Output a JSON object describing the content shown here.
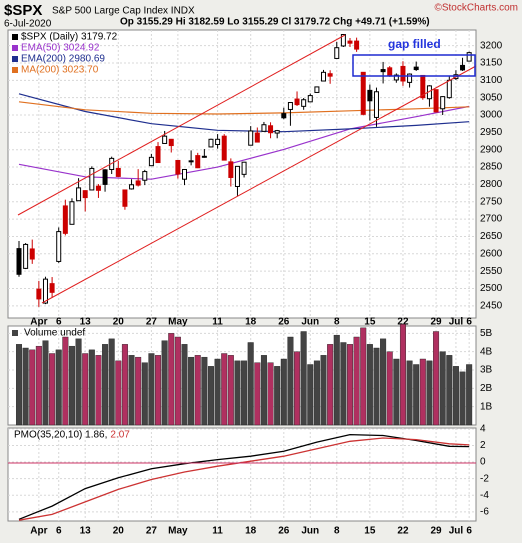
{
  "chart_data": {
    "type": "candlestick",
    "title": "$SPX",
    "subtitle": "S&P 500 Large Cap Index INDX",
    "credit": "©StockCharts.com",
    "date": "6-Jul-2020",
    "stats": "Op 3155.29  Hi 3182.59  Lo 3155.29  Cl 3179.72  Chg +49.71 (+1.59%)",
    "annotation": "gap filled",
    "price_label": "$SPX (Daily) 3179.72",
    "categories": [
      null,
      null,
      null,
      "Apr",
      null,
      null,
      "6",
      null,
      null,
      null,
      "13",
      null,
      null,
      null,
      null,
      "20",
      null,
      null,
      null,
      null,
      "27",
      null,
      null,
      null,
      "May",
      null,
      null,
      null,
      null,
      null,
      "11",
      null,
      null,
      null,
      null,
      "18",
      null,
      null,
      null,
      null,
      "26",
      null,
      null,
      null,
      "Jun",
      null,
      null,
      null,
      "8",
      null,
      null,
      null,
      null,
      "15",
      null,
      null,
      null,
      null,
      "22",
      null,
      null,
      null,
      null,
      "29",
      null,
      null,
      "Jul",
      null,
      "6"
    ],
    "open": [
      2615,
      2558,
      2614,
      2498,
      2458,
      2514,
      2578,
      2738,
      2685,
      2753,
      2782,
      2784,
      2795,
      2842,
      2843,
      2846,
      2784,
      2787,
      2810,
      2812,
      2854,
      2909,
      2918,
      2930,
      2869,
      2815,
      2868,
      2883,
      2879,
      2908,
      2915,
      2939,
      2865,
      2794,
      2829,
      2913,
      2948,
      2953,
      2969,
      2948,
      3004,
      3016,
      3046,
      3025,
      3038,
      3065,
      3098,
      3119,
      3163,
      3199,
      3213,
      3213,
      3123,
      3071,
      2993,
      3131,
      3136,
      3101,
      3140,
      3094,
      3138,
      3114,
      3047,
      3073,
      3018,
      3050,
      3105,
      3143,
      3155.29
    ],
    "high": [
      2637,
      2631,
      2641,
      2522,
      2534,
      2533,
      2676,
      2756,
      2760,
      2818,
      2783,
      2852,
      2801,
      2844,
      2880,
      2868,
      2785,
      2815,
      2844,
      2842,
      2888,
      2922,
      2954,
      2931,
      2869,
      2844,
      2898,
      2891,
      2902,
      2932,
      2945,
      2945,
      2875,
      2852,
      2865,
      2968,
      2964,
      2980,
      2979,
      2957,
      3021,
      3036,
      3068,
      3049,
      3062,
      3082,
      3130,
      3129,
      3211,
      3233,
      3222,
      3223,
      3123,
      3088,
      3079,
      3153,
      3141,
      3120,
      3155,
      3120,
      3154,
      3115,
      3086,
      3073,
      3054,
      3112,
      3129,
      3165,
      3182.59
    ],
    "low": [
      2534,
      2556,
      2571,
      2447,
      2455,
      2473,
      2574,
      2653,
      2685,
      2753,
      2722,
      2784,
      2761,
      2779,
      2830,
      2821,
      2727,
      2785,
      2794,
      2798,
      2853,
      2862,
      2918,
      2892,
      2817,
      2798,
      2855,
      2847,
      2877,
      2908,
      2903,
      2869,
      2794,
      2767,
      2820,
      2913,
      2922,
      2953,
      2933,
      2933,
      2988,
      2969,
      3026,
      3015,
      3038,
      3064,
      3098,
      3090,
      3163,
      3196,
      3196,
      3182,
      2999,
      2984,
      2966,
      3091,
      3110,
      3093,
      3084,
      3079,
      3127,
      3044,
      3024,
      3007,
      3000,
      3047,
      3101,
      3127,
      3155.29
    ],
    "close": [
      2541,
      2627,
      2585,
      2470,
      2527,
      2489,
      2664,
      2659,
      2750,
      2790,
      2762,
      2846,
      2783,
      2800,
      2875,
      2823,
      2737,
      2799,
      2798,
      2837,
      2878,
      2863,
      2939,
      2912,
      2830,
      2843,
      2868,
      2848,
      2881,
      2930,
      2930,
      2870,
      2820,
      2852,
      2864,
      2954,
      2922,
      2972,
      2949,
      2955,
      2992,
      3036,
      3030,
      3044,
      3056,
      3081,
      3123,
      3112,
      3194,
      3232,
      3207,
      3190,
      3002,
      3041,
      3067,
      3125,
      3113,
      3115,
      3098,
      3118,
      3131,
      3050,
      3084,
      3009,
      3053,
      3100,
      3116,
      3130,
      3179.72
    ],
    "ylim": [
      2415,
      3245
    ],
    "yticks": [
      2450,
      2500,
      2550,
      2600,
      2650,
      2700,
      2750,
      2800,
      2850,
      2900,
      2950,
      3000,
      3050,
      3100,
      3150,
      3200
    ],
    "indicators": [
      {
        "name": "EMA(50) 3024.92",
        "color": "#9933cc",
        "idx": [
          0,
          10,
          20,
          30,
          40,
          50,
          60,
          68
        ],
        "values": [
          2858,
          2822,
          2815,
          2850,
          2901,
          2960,
          2995,
          3024.92
        ]
      },
      {
        "name": "EMA(200) 2980.69",
        "color": "#1f2f8f",
        "idx": [
          0,
          10,
          20,
          30,
          40,
          50,
          60,
          68
        ],
        "values": [
          3061,
          3010,
          2975,
          2956,
          2952,
          2960,
          2970,
          2980.69
        ]
      },
      {
        "name": "MA(200) 3023.70",
        "color": "#e07020",
        "idx": [
          0,
          10,
          20,
          30,
          40,
          50,
          60,
          68
        ],
        "values": [
          3038,
          3015,
          3005,
          3003,
          3006,
          3012,
          3018,
          3023.7
        ]
      }
    ],
    "volume": {
      "label": "Volume undef",
      "ylim": [
        0,
        5.4
      ],
      "yticks": [
        {
          "value": 1,
          "label": "1B"
        },
        {
          "value": 2,
          "label": "2B"
        },
        {
          "value": 3,
          "label": "3B"
        },
        {
          "value": 4,
          "label": "4B"
        },
        {
          "value": 5,
          "label": "5B"
        }
      ],
      "values": [
        4.4,
        4.2,
        4.1,
        4.3,
        4.6,
        3.9,
        4.1,
        4.8,
        4.3,
        4.7,
        3.9,
        4.1,
        3.8,
        4.4,
        4.7,
        3.5,
        4.4,
        3.8,
        3.7,
        3.4,
        3.9,
        3.8,
        4.6,
        5.0,
        4.8,
        4.4,
        3.7,
        3.8,
        3.7,
        3.2,
        3.6,
        3.9,
        3.8,
        3.5,
        3.5,
        4.5,
        3.4,
        3.8,
        3.4,
        3.2,
        3.6,
        4.8,
        4.0,
        5.1,
        3.3,
        3.5,
        3.8,
        4.4,
        4.9,
        4.5,
        4.4,
        4.8,
        5.3,
        4.4,
        4.2,
        4.7,
        4.0,
        3.6,
        5.5,
        3.5,
        3.3,
        3.6,
        3.5,
        5.1,
        4.0,
        3.8,
        3.2,
        2.9,
        3.3
      ]
    },
    "pmo": {
      "label": "PMO(35,20,10) 1.86,",
      "signal_label": "2.07",
      "ylim": [
        -7.1,
        4.1
      ],
      "yticks": [
        -6,
        -4,
        -2,
        0,
        2,
        4
      ],
      "lines": [
        {
          "color": "#000000",
          "idx": [
            0,
            5,
            10,
            15,
            20,
            25,
            30,
            35,
            40,
            45,
            50,
            55,
            60,
            65,
            68
          ],
          "values": [
            -6.9,
            -5.3,
            -3.2,
            -1.9,
            -0.8,
            -0.2,
            0.3,
            0.7,
            1.3,
            2.4,
            3.3,
            3.2,
            2.6,
            1.9,
            1.86
          ]
        },
        {
          "color": "#cc3333",
          "idx": [
            0,
            5,
            10,
            15,
            20,
            25,
            30,
            35,
            40,
            45,
            50,
            55,
            60,
            65,
            68
          ],
          "values": [
            -7.0,
            -6.3,
            -4.8,
            -3.3,
            -2.1,
            -1.2,
            -0.5,
            0.1,
            0.7,
            1.6,
            2.5,
            2.9,
            2.7,
            2.2,
            2.07
          ]
        }
      ]
    }
  }
}
